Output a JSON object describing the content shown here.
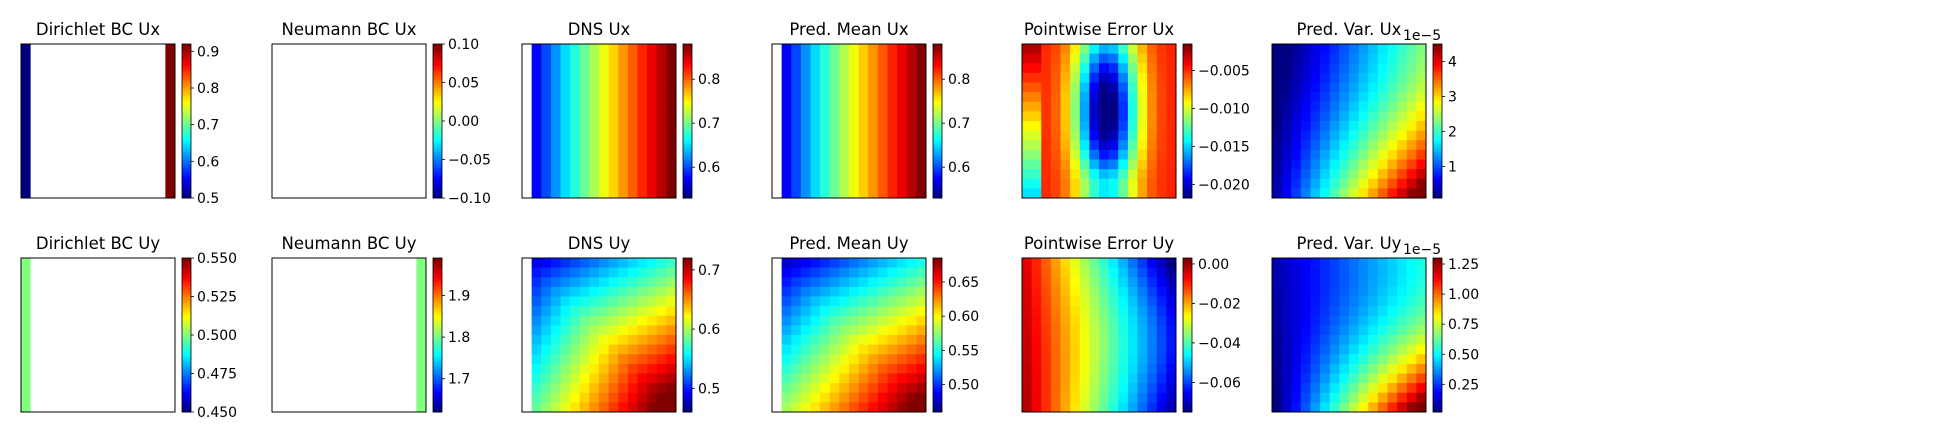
{
  "panels": [
    {
      "title": "Dirichlet BC Ux",
      "kind": "dirichlet",
      "field": "ux",
      "cbar_ticks": [
        "0.5",
        "0.6",
        "0.7",
        "0.8",
        "0.9"
      ],
      "cbar_range": [
        0.5,
        0.92
      ]
    },
    {
      "title": "Neumann BC Ux",
      "kind": "neumann",
      "field": "ux",
      "cbar_ticks": [
        "−0.10",
        "−0.05",
        "0.00",
        "0.05",
        "0.10"
      ],
      "cbar_range": [
        -0.1,
        0.1
      ]
    },
    {
      "title": "DNS Ux",
      "kind": "dns",
      "field": "ux",
      "cbar_ticks": [
        "0.6",
        "0.7",
        "0.8"
      ],
      "cbar_range": [
        0.53,
        0.88
      ]
    },
    {
      "title": "Pred. Mean Ux",
      "kind": "mean",
      "field": "ux",
      "cbar_ticks": [
        "0.6",
        "0.7",
        "0.8"
      ],
      "cbar_range": [
        0.53,
        0.88
      ]
    },
    {
      "title": "Pointwise Error Ux",
      "kind": "error",
      "field": "ux",
      "cbar_ticks": [
        "−0.005",
        "−0.010",
        "−0.015",
        "−0.020"
      ],
      "cbar_range": [
        -0.0218,
        -0.0015
      ]
    },
    {
      "title": "Pred. Var. Ux",
      "kind": "var",
      "field": "ux",
      "exponent": "1e−5",
      "cbar_ticks": [
        "1",
        "2",
        "3",
        "4"
      ],
      "cbar_range": [
        0.1,
        4.5
      ]
    },
    {
      "title": "Dirichlet BC Uy",
      "kind": "dirichlet",
      "field": "uy",
      "cbar_ticks": [
        "0.450",
        "0.475",
        "0.500",
        "0.525",
        "0.550"
      ],
      "cbar_range": [
        0.45,
        0.55
      ]
    },
    {
      "title": "Neumann BC Uy",
      "kind": "neumann",
      "field": "uy",
      "cbar_ticks": [
        "1.7",
        "1.8",
        "1.9"
      ],
      "cbar_range": [
        1.62,
        1.99
      ]
    },
    {
      "title": "DNS Uy",
      "kind": "dns",
      "field": "uy",
      "cbar_ticks": [
        "0.5",
        "0.6",
        "0.7"
      ],
      "cbar_range": [
        0.46,
        0.72
      ]
    },
    {
      "title": "Pred. Mean Uy",
      "kind": "mean",
      "field": "uy",
      "cbar_ticks": [
        "0.50",
        "0.55",
        "0.60",
        "0.65"
      ],
      "cbar_range": [
        0.46,
        0.685
      ]
    },
    {
      "title": "Pointwise Error Uy",
      "kind": "error",
      "field": "uy",
      "cbar_ticks": [
        "0.00",
        "−0.02",
        "−0.04",
        "−0.06"
      ],
      "cbar_range": [
        -0.075,
        0.003
      ]
    },
    {
      "title": "Pred. Var. Uy",
      "kind": "var",
      "field": "uy",
      "exponent": "1e−5",
      "cbar_ticks": [
        "0.25",
        "0.50",
        "0.75",
        "1.00",
        "1.25"
      ],
      "cbar_range": [
        0.02,
        1.3
      ]
    }
  ],
  "chart_data": {
    "type": "heatmap",
    "colormap": "jet",
    "grid_size": [
      16,
      16
    ],
    "layout": "2 rows x 6 columns",
    "rows": [
      "Ux",
      "Uy"
    ],
    "columns": [
      "Dirichlet BC",
      "Neumann BC",
      "DNS",
      "Pred. Mean",
      "Pointwise Error",
      "Pred. Var."
    ],
    "boundary_conditions": {
      "dirichlet_ux": {
        "left": 0.5,
        "right": 0.92
      },
      "neumann_ux": {
        "note": "blank"
      },
      "dirichlet_uy": {
        "left": 0.5
      },
      "neumann_uy": {
        "right": 1.8
      }
    },
    "field_ranges": {
      "dns_ux": [
        0.53,
        0.88
      ],
      "mean_ux": [
        0.53,
        0.88
      ],
      "error_ux": [
        -0.0218,
        -0.0015
      ],
      "var_ux_1e-5": [
        0.1,
        4.5
      ],
      "dns_uy": [
        0.46,
        0.72
      ],
      "mean_uy": [
        0.46,
        0.685
      ],
      "error_uy": [
        -0.075,
        0.003
      ],
      "var_uy_1e-5": [
        0.02,
        1.3
      ]
    }
  }
}
